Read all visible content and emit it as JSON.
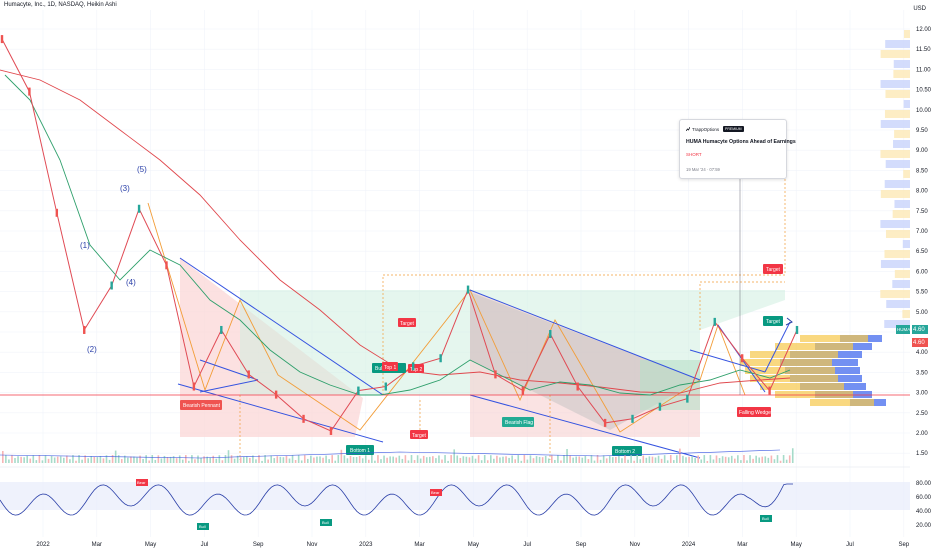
{
  "header": {
    "title": "Humacyte, Inc., 1D, NASDAQ, Heikin Ashi",
    "currency": "USD"
  },
  "price_axis": [
    "12.00",
    "11.50",
    "11.00",
    "10.50",
    "10.00",
    "9.50",
    "9.00",
    "8.50",
    "8.00",
    "7.50",
    "7.00",
    "6.50",
    "6.00",
    "5.50",
    "5.00",
    "4.50",
    "4.00",
    "3.50",
    "3.00",
    "2.50",
    "2.00",
    "1.50"
  ],
  "rsi_axis": [
    "80.00",
    "60.00",
    "40.00",
    "20.00"
  ],
  "time_axis": [
    "2022",
    "Mar",
    "May",
    "Jul",
    "Sep",
    "Nov",
    "2023",
    "Mar",
    "May",
    "Jul",
    "Sep",
    "Nov",
    "2024",
    "Mar",
    "May",
    "Jul",
    "Sep"
  ],
  "price_tags": {
    "symbol": "HUMA",
    "last": "4.60",
    "second": "4.60"
  },
  "annotations": {
    "waves": [
      "(1)",
      "(2)",
      "(3)",
      "(4)",
      "(5)"
    ],
    "bearish_pennant": "Bearish Pennant",
    "bottom_1": "Bottom 1",
    "bottom_2": "Bottom 2",
    "top_1": "Top 1",
    "top_2": "Top 2",
    "bull": "Bull",
    "bearish_flag": "Bearish Flag",
    "falling_wedge": "Falling Wedge",
    "target": "Target",
    "bear": "Bear"
  },
  "news": {
    "source": "TrappOptions",
    "badge": "PREMIUM",
    "title": "HUMA Humacyte Options Ahead of Earnings",
    "direction": "SHORT",
    "timestamp": "19 Mar '24 · 07:59"
  },
  "colors": {
    "up": "#26a69a",
    "down": "#ef5350",
    "ma_red": "#e0474c",
    "ma_green": "#2e9f6b",
    "trend_blue": "#3553e0",
    "rsi": "#2a3fa8"
  },
  "chart_data": {
    "type": "line",
    "title": "Humacyte, Inc., 1D, NASDAQ, Heikin Ashi",
    "x_ticks": [
      "2022",
      "Mar",
      "May",
      "Jul",
      "Sep",
      "Nov",
      "2023",
      "Mar",
      "May",
      "Jul",
      "Sep",
      "Nov",
      "2024",
      "Mar",
      "May",
      "Jul",
      "Sep"
    ],
    "y_range": [
      1.5,
      12.2
    ],
    "series": [
      {
        "name": "HUMA",
        "x": [
          "Dec 2021",
          "Jan 2022",
          "Feb 2022",
          "Mar 2022",
          "Apr 2022",
          "May 2022",
          "Jun 2022",
          "Jul 2022",
          "Aug 2022",
          "Sep 2022",
          "Oct 2022",
          "Nov 2022",
          "Dec 2022",
          "Jan 2023",
          "Feb 2023",
          "Mar 2023",
          "Apr 2023",
          "May 2023",
          "Jun 2023",
          "Jul 2023",
          "Aug 2023",
          "Sep 2023",
          "Oct 2023",
          "Nov 2023",
          "Dec 2023",
          "Jan 2024",
          "Feb 2024",
          "Mar 2024",
          "Apr 2024",
          "May 2024"
        ],
        "values": [
          11.8,
          10.5,
          7.5,
          4.6,
          5.7,
          7.6,
          6.2,
          3.2,
          4.6,
          3.5,
          3.0,
          2.4,
          2.1,
          3.1,
          3.2,
          3.7,
          3.9,
          5.6,
          3.5,
          3.1,
          4.5,
          3.2,
          2.3,
          2.4,
          2.7,
          2.9,
          4.8,
          3.9,
          3.1,
          4.6
        ]
      }
    ],
    "rsi": {
      "range": [
        0,
        100
      ],
      "levels": [
        70,
        30
      ]
    }
  }
}
